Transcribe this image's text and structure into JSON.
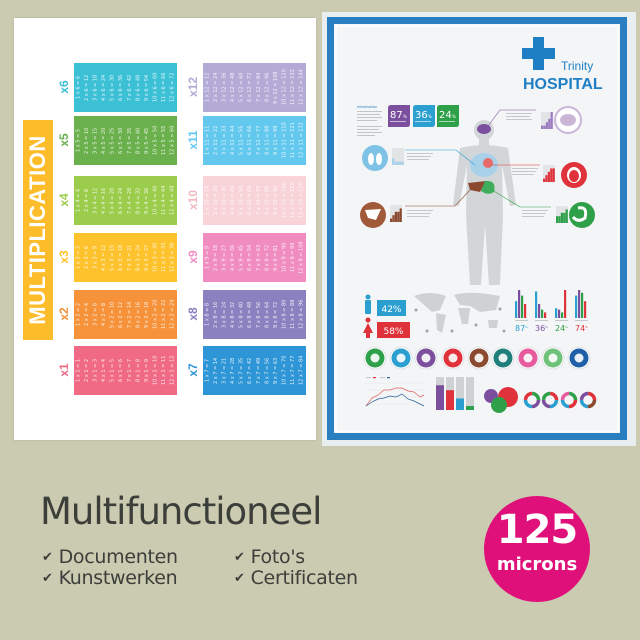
{
  "multiplication_poster": {
    "title": "MULTIPLICATION",
    "banner_color": "#fdbd2a",
    "tables": [
      {
        "label": "x1",
        "color": "#f06a85",
        "rows": [
          "1 x 1 = 1",
          "2 x 1 = 2",
          "3 x 1 = 3",
          "4 x 1 = 4",
          "5 x 1 = 5",
          "6 x 1 = 6",
          "7 x 1 = 7",
          "8 x 1 = 8",
          "9 x 1 = 9",
          "10 x 1 = 10",
          "11 x 1 = 11",
          "12 x 1 = 12"
        ]
      },
      {
        "label": "x2",
        "color": "#f5923a",
        "rows": [
          "1 x 2 = 2",
          "2 x 2 = 4",
          "3 x 2 = 6",
          "4 x 2 = 8",
          "5 x 2 = 10",
          "6 x 2 = 12",
          "7 x 2 = 14",
          "8 x 2 = 16",
          "9 x 2 = 18",
          "10 x 2 = 20",
          "11 x 2 = 22",
          "12 x 2 = 24"
        ]
      },
      {
        "label": "x3",
        "color": "#fdc22c",
        "rows": [
          "1 x 3 = 3",
          "2 x 3 = 6",
          "3 x 3 = 9",
          "4 x 3 = 12",
          "5 x 3 = 15",
          "6 x 3 = 18",
          "7 x 3 = 21",
          "8 x 3 = 24",
          "9 x 3 = 27",
          "10 x 3 = 30",
          "11 x 3 = 33",
          "12 x 3 = 36"
        ]
      },
      {
        "label": "x4",
        "color": "#9ccc4c",
        "rows": [
          "1 x 4 = 4",
          "2 x 4 = 8",
          "3 x 4 = 12",
          "4 x 4 = 16",
          "5 x 4 = 20",
          "6 x 4 = 24",
          "7 x 4 = 28",
          "8 x 4 = 32",
          "9 x 4 = 36",
          "10 x 4 = 40",
          "11 x 4 = 44",
          "12 x 4 = 48"
        ]
      },
      {
        "label": "x5",
        "color": "#6ab04c",
        "rows": [
          "1 x 5 = 5",
          "2 x 5 = 10",
          "3 x 5 = 15",
          "4 x 5 = 20",
          "5 x 5 = 25",
          "6 x 5 = 30",
          "7 x 5 = 35",
          "8 x 5 = 40",
          "9 x 5 = 45",
          "10 x 5 = 50",
          "11 x 5 = 55",
          "12 x 5 = 60"
        ]
      },
      {
        "label": "x6",
        "color": "#3cc0d6",
        "rows": [
          "1 x 6 = 6",
          "2 x 6 = 12",
          "3 x 6 = 18",
          "4 x 6 = 24",
          "5 x 6 = 30",
          "6 x 6 = 36",
          "7 x 6 = 42",
          "8 x 6 = 48",
          "9 x 6 = 54",
          "10 x 6 = 60",
          "11 x 6 = 66",
          "12 x 6 = 72"
        ]
      },
      {
        "label": "x7",
        "color": "#2e96d6",
        "rows": [
          "1 x 7 = 7",
          "2 x 7 = 14",
          "3 x 7 = 21",
          "4 x 7 = 28",
          "5 x 7 = 35",
          "6 x 7 = 42",
          "7 x 7 = 49",
          "8 x 7 = 56",
          "9 x 7 = 63",
          "10 x 7 = 70",
          "11 x 7 = 77",
          "12 x 7 = 84"
        ]
      },
      {
        "label": "x8",
        "color": "#8b80c0",
        "rows": [
          "1 x 8 = 8",
          "2 x 8 = 16",
          "3 x 8 = 24",
          "4 x 8 = 32",
          "5 x 8 = 40",
          "6 x 8 = 48",
          "7 x 8 = 56",
          "8 x 8 = 64",
          "9 x 8 = 72",
          "10 x 8 = 80",
          "11 x 8 = 88",
          "12 x 8 = 96"
        ]
      },
      {
        "label": "x9",
        "color": "#f08cc0",
        "rows": [
          "1 x 9 = 9",
          "2 x 9 = 18",
          "3 x 9 = 27",
          "4 x 9 = 36",
          "5 x 9 = 45",
          "6 x 9 = 54",
          "7 x 9 = 63",
          "8 x 9 = 72",
          "9 x 9 = 81",
          "10 x 9 = 90",
          "11 x 9 = 99",
          "12 x 9 = 108"
        ]
      },
      {
        "label": "x10",
        "color": "#f8d3d8",
        "rows": [
          "1 x 10 = 10",
          "2 x 10 = 20",
          "3 x 10 = 30",
          "4 x 10 = 40",
          "5 x 10 = 50",
          "6 x 10 = 60",
          "7 x 10 = 70",
          "8 x 10 = 80",
          "9 x 10 = 90",
          "10 x 10 = 100",
          "11 x 10 = 110",
          "12 x 10 = 120"
        ]
      },
      {
        "label": "x11",
        "color": "#62c8ee",
        "rows": [
          "1 x 11 = 11",
          "2 x 11 = 22",
          "3 x 11 = 33",
          "4 x 11 = 44",
          "5 x 11 = 55",
          "6 x 11 = 66",
          "7 x 11 = 77",
          "8 x 11 = 88",
          "9 x 11 = 99",
          "10 x 11 = 110",
          "11 x 11 = 121",
          "12 x 11 = 132"
        ]
      },
      {
        "label": "x12",
        "color": "#b3aad6",
        "rows": [
          "1 x 12 = 12",
          "2 x 12 = 24",
          "3 x 12 = 36",
          "4 x 12 = 48",
          "5 x 12 = 60",
          "6 x 12 = 72",
          "7 x 12 = 84",
          "8 x 12 = 96",
          "9 x 12 = 108",
          "10 x 12 = 120",
          "11 x 12 = 132",
          "12 x 12 = 144"
        ]
      }
    ]
  },
  "hospital_poster": {
    "brand_top": "Trinity",
    "brand_name": "HOSPITAL",
    "frame_color": "#2a7fc1",
    "info_heading": "Information",
    "stat_tiles": [
      {
        "value": "87",
        "unit": "%",
        "color": "#7b4f9e"
      },
      {
        "value": "36",
        "unit": "%",
        "color": "#2b9fd0"
      },
      {
        "value": "24",
        "unit": "%",
        "color": "#2ea04a"
      }
    ],
    "gender": {
      "male": "42%",
      "female": "58%",
      "male_color": "#2b9fd0",
      "female_color": "#e0323a"
    },
    "bar_stats": [
      {
        "value": "87",
        "unit": "%",
        "color": "#2b9fd0"
      },
      {
        "value": "36",
        "unit": "%",
        "color": "#7b4f9e"
      },
      {
        "value": "24",
        "unit": "%",
        "color": "#2ea04a"
      },
      {
        "value": "74",
        "unit": "%",
        "color": "#e0323a"
      }
    ],
    "organ_icons": [
      "stomach-icon",
      "lungs-icon",
      "brain-icon",
      "heart-icon",
      "liver-icon",
      "tooth-icon",
      "heart-love-icon",
      "sleep-icon",
      "apple-icon"
    ],
    "organ_icon_colors": [
      "#2ea04a",
      "#2b9fd0",
      "#7b4f9e",
      "#e0323a",
      "#8b4a2f",
      "#1f7f7a",
      "#e85a9e",
      "#6fc27a",
      "#1f5fa8"
    ]
  },
  "headline": "Multifunctioneel",
  "features": [
    "Documenten",
    "Kunstwerken",
    "Foto's",
    "Certificaten"
  ],
  "badge": {
    "value": "125",
    "unit": "microns",
    "color": "#e0107a"
  }
}
